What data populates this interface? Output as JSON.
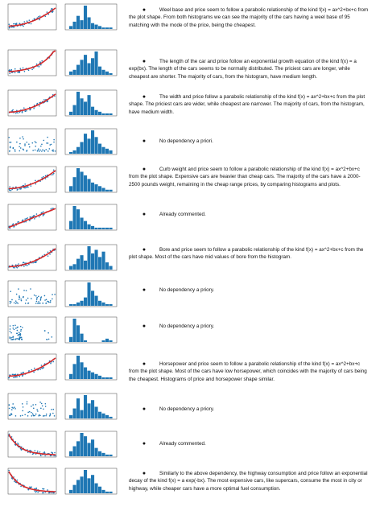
{
  "colors": {
    "scatter": "#1f77b4",
    "fit": "#d62728",
    "bars": "#1f77b4"
  },
  "rows": [
    {
      "id": "wheelbase",
      "kind": "parabola",
      "hist": [
        2,
        5,
        9,
        6,
        16,
        8,
        4,
        3,
        2,
        1,
        1,
        1
      ],
      "text": "Weel base and price seem to follow a parabolic relationship of the kind f(x) = ax^2+bx+c from the plot shape. From both histograms we can see the majority of the cars having a weel base of 95 matching with the mode of the price, being the cheapest."
    },
    {
      "id": "length",
      "kind": "exp",
      "hist": [
        2,
        3,
        6,
        9,
        12,
        7,
        10,
        14,
        5,
        3,
        2,
        1
      ],
      "text": "The length of the car and price follow an exponential growth equation of the kind f(x) = a exp(bx). The length of the cars seems to be normally distributed. The priciest cars are longer, while cheapest are shorter. The majority of cars, from the histogram, have medium length."
    },
    {
      "id": "width",
      "kind": "parabola",
      "hist": [
        2,
        6,
        14,
        10,
        8,
        12,
        5,
        3,
        2,
        1,
        1,
        1
      ],
      "text": "The width and price follow a parabolic relationship of the kind f(x) = ax^2+bx+c from the plot shape. The priciest cars are wider, while cheapest are narrower. The majority of cars, from the histogram, have medium width."
    },
    {
      "id": "height",
      "kind": "scatter",
      "hist": [
        1,
        2,
        4,
        7,
        12,
        9,
        14,
        10,
        6,
        4,
        3,
        2
      ],
      "text": "No dependency a priori."
    },
    {
      "id": "curbweight",
      "kind": "parabola",
      "hist": [
        3,
        8,
        13,
        11,
        9,
        7,
        5,
        4,
        3,
        2,
        1,
        1
      ],
      "text": "Curb weight and price seem to follow a parabolic relationship of the kind f(x) = ax^2+bx+c from the plot shape. Expensive cars are heavier than cheap cars. The majority of the cars have a 2000-2500 pounds weight, remaining in the cheap range prices, by comparing histograms and plots."
    },
    {
      "id": "enginesize",
      "kind": "linear",
      "hist": [
        5,
        14,
        12,
        7,
        5,
        3,
        2,
        1,
        1,
        1,
        1,
        1
      ],
      "text": "Already commented."
    },
    {
      "id": "bore",
      "kind": "parabola",
      "hist": [
        2,
        3,
        6,
        8,
        5,
        13,
        9,
        11,
        7,
        10,
        4,
        2
      ],
      "text": "Bore and price seem to follow a parabolic relationship of the kind f(x) = ax^2+bx+c from the plot shape. Most of the cars have mid values of bore from the histogram."
    },
    {
      "id": "stroke",
      "kind": "scatter",
      "hist": [
        1,
        1,
        2,
        3,
        5,
        14,
        9,
        6,
        3,
        2,
        1,
        1
      ],
      "text": "No dependency a priory."
    },
    {
      "id": "compressionratio",
      "kind": "cluster",
      "hist": [
        3,
        14,
        10,
        5,
        1,
        0,
        0,
        0,
        0,
        1,
        2,
        1
      ],
      "text": "No dependency a priory."
    },
    {
      "id": "horsepower",
      "kind": "parabola",
      "hist": [
        3,
        9,
        14,
        10,
        7,
        5,
        4,
        3,
        2,
        1,
        1,
        1
      ],
      "text": "Horsepower and price seem to follow a parabolic relationship of the kind f(x) = ax^2+bx+c from the plot shape. Most of the cars have low horsepower, which coincides with the majority of cars being the cheapest. Histograms of price and horsepower shape similar."
    },
    {
      "id": "peakrpm",
      "kind": "scatter",
      "hist": [
        2,
        6,
        12,
        5,
        14,
        9,
        11,
        7,
        4,
        3,
        2,
        1
      ],
      "text": "No dependency a priory."
    },
    {
      "id": "citympg",
      "kind": "decay",
      "hist": [
        3,
        6,
        9,
        14,
        12,
        8,
        10,
        5,
        3,
        2,
        1,
        1
      ],
      "text": "Already commented."
    },
    {
      "id": "highwaympg",
      "kind": "decay",
      "hist": [
        2,
        5,
        8,
        10,
        14,
        9,
        11,
        6,
        4,
        2,
        1,
        1
      ],
      "text": "Similarly to the above dependency, the highway consumption and price follow an exponential decay of the kind f(x) = a exp(-bx). The most expensive cars, like supercars, consume the most in city or highway, while cheaper cars have a more optimal fuel consumption."
    }
  ]
}
